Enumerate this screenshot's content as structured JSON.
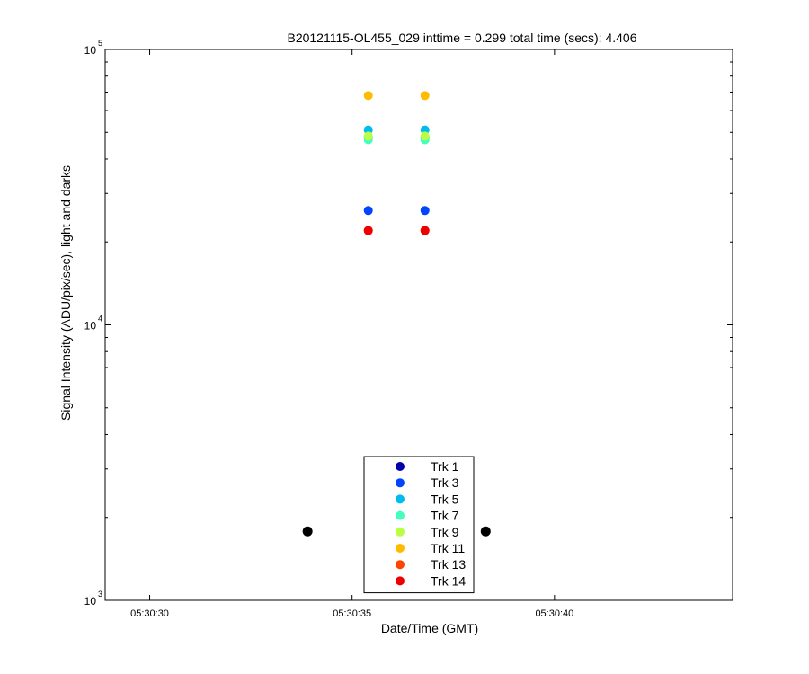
{
  "chart_data": {
    "type": "scatter",
    "title": "B20121115-OL455_029 inttime = 0.299 total time (secs): 4.406",
    "xlabel": "Date/Time (GMT)",
    "ylabel": "Signal Intensity (ADU/pix/sec), light and darks",
    "yscale": "log",
    "ylim": [
      1000,
      100000
    ],
    "xlim": [
      28.9,
      44.4
    ],
    "grid": false,
    "legend_position": "bottom-center",
    "x_ticks": [
      {
        "value": 30,
        "label": "05:30:30"
      },
      {
        "value": 35,
        "label": "05:30:35"
      },
      {
        "value": 40,
        "label": "05:30:40"
      }
    ],
    "y_ticks": [
      {
        "value": 1000,
        "base": "10",
        "exp": "3"
      },
      {
        "value": 10000,
        "base": "10",
        "exp": "4"
      },
      {
        "value": 100000,
        "base": "10",
        "exp": "5"
      }
    ],
    "series": [
      {
        "name": "Trk 1",
        "color": "#0000aa",
        "x": [
          35.4,
          36.8
        ],
        "y": [
          48000,
          48000
        ]
      },
      {
        "name": "Trk 3",
        "color": "#0044ff",
        "x": [
          35.4,
          36.8
        ],
        "y": [
          26000,
          26000
        ]
      },
      {
        "name": "Trk 5",
        "color": "#00bbee",
        "x": [
          35.4,
          36.8
        ],
        "y": [
          51000,
          51000
        ]
      },
      {
        "name": "Trk 7",
        "color": "#44ffbb",
        "x": [
          35.4,
          36.8
        ],
        "y": [
          47000,
          47000
        ]
      },
      {
        "name": "Trk 9",
        "color": "#bbff44",
        "x": [
          35.4,
          36.8
        ],
        "y": [
          48500,
          48500
        ]
      },
      {
        "name": "Trk 11",
        "color": "#ffbb00",
        "x": [
          35.4,
          36.8
        ],
        "y": [
          68000,
          68000
        ]
      },
      {
        "name": "Trk 13",
        "color": "#ff4400",
        "x": [
          35.4,
          36.8
        ],
        "y": [
          22000,
          22000
        ]
      },
      {
        "name": "Trk 14",
        "color": "#ee0000",
        "x": [
          35.4,
          36.8
        ],
        "y": [
          22000,
          22000
        ]
      }
    ],
    "dark_points": {
      "color": "#000000",
      "x": [
        33.9,
        38.3
      ],
      "y": [
        1780,
        1780
      ]
    }
  }
}
